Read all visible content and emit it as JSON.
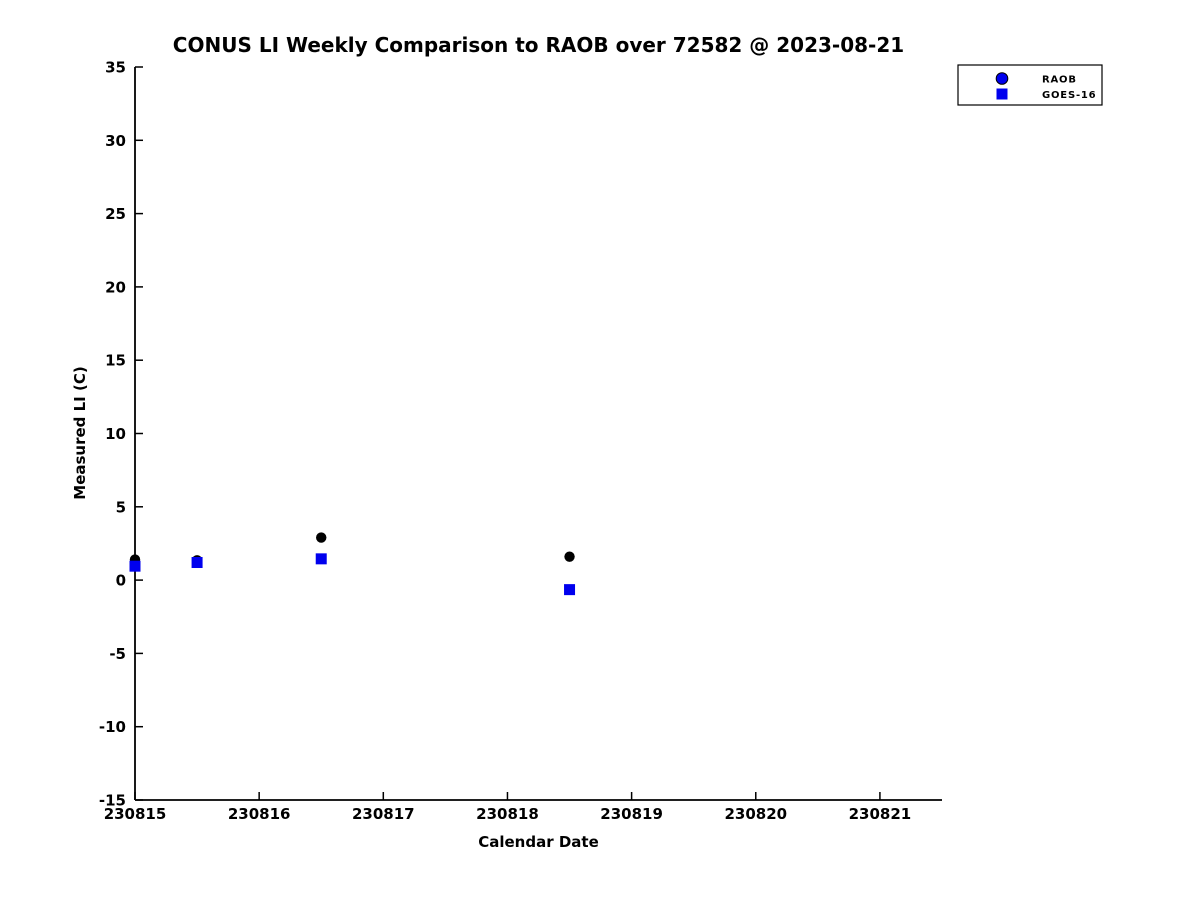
{
  "chart_data": {
    "type": "scatter",
    "title": "CONUS LI Weekly Comparison to RAOB over 72582 @ 2023-08-21",
    "xlabel": "Calendar Date",
    "ylabel": "Measured LI (C)",
    "xlim": [
      230815,
      230821.5
    ],
    "ylim": [
      -15,
      35
    ],
    "xticks": [
      230815,
      230816,
      230817,
      230818,
      230819,
      230820,
      230821
    ],
    "yticks": [
      35,
      30,
      25,
      20,
      15,
      10,
      5,
      0,
      -5,
      -10,
      -15
    ],
    "grid": false,
    "legend_position": "upper-right",
    "series": [
      {
        "name": "RAOB",
        "marker": "circle",
        "color": "#000000",
        "legend_color": "#0000ee",
        "x": [
          230815.0,
          230815.5,
          230816.5,
          230818.5
        ],
        "y": [
          1.4,
          1.35,
          2.9,
          1.6
        ]
      },
      {
        "name": "GOES-16",
        "marker": "square",
        "color": "#0000ee",
        "legend_color": "#0000ee",
        "x": [
          230815.0,
          230815.5,
          230816.5,
          230818.5
        ],
        "y": [
          0.95,
          1.2,
          1.45,
          -0.65
        ]
      }
    ]
  }
}
